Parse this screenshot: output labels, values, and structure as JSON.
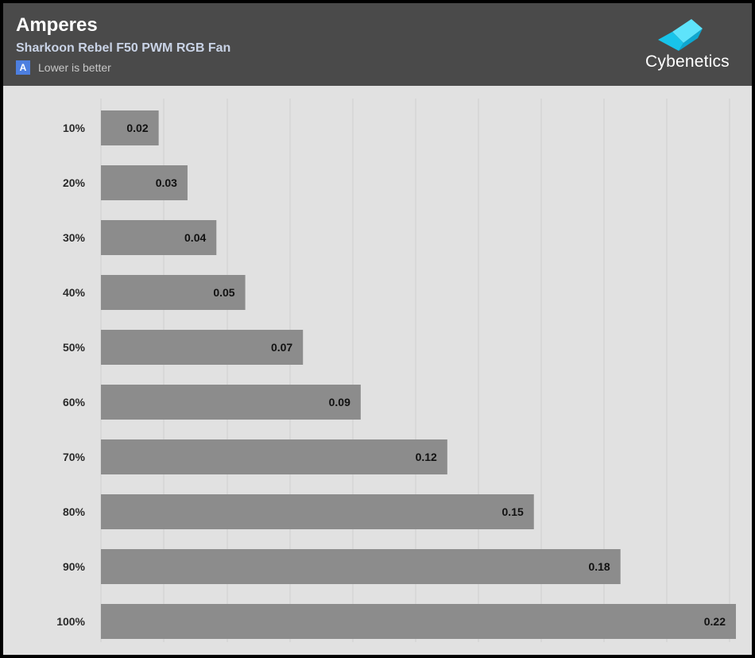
{
  "header": {
    "title": "Amperes",
    "subtitle": "Sharkoon Rebel F50 PWM RGB Fan",
    "badge": "A",
    "note": "Lower is better",
    "logo_text": "Cybenetics",
    "logo_icon": "cybenetics-cube-logo"
  },
  "colors": {
    "header_bg": "#4a4a4a",
    "plot_bg": "#e1e1e1",
    "bar": "#8c8c8c",
    "grid": "#d0d0d0",
    "badge": "#4d7fe0",
    "logo_cube": "#29d4f5"
  },
  "chart_data": {
    "type": "bar",
    "orientation": "horizontal",
    "categories": [
      "10%",
      "20%",
      "30%",
      "40%",
      "50%",
      "60%",
      "70%",
      "80%",
      "90%",
      "100%"
    ],
    "values": [
      0.02,
      0.03,
      0.04,
      0.05,
      0.07,
      0.09,
      0.12,
      0.15,
      0.18,
      0.22
    ],
    "data_labels": [
      "0.02",
      "0.03",
      "0.04",
      "0.05",
      "0.07",
      "0.09",
      "0.12",
      "0.15",
      "0.18",
      "0.22"
    ],
    "xlim": [
      0,
      0.22
    ],
    "grid": true,
    "legend": "none"
  }
}
